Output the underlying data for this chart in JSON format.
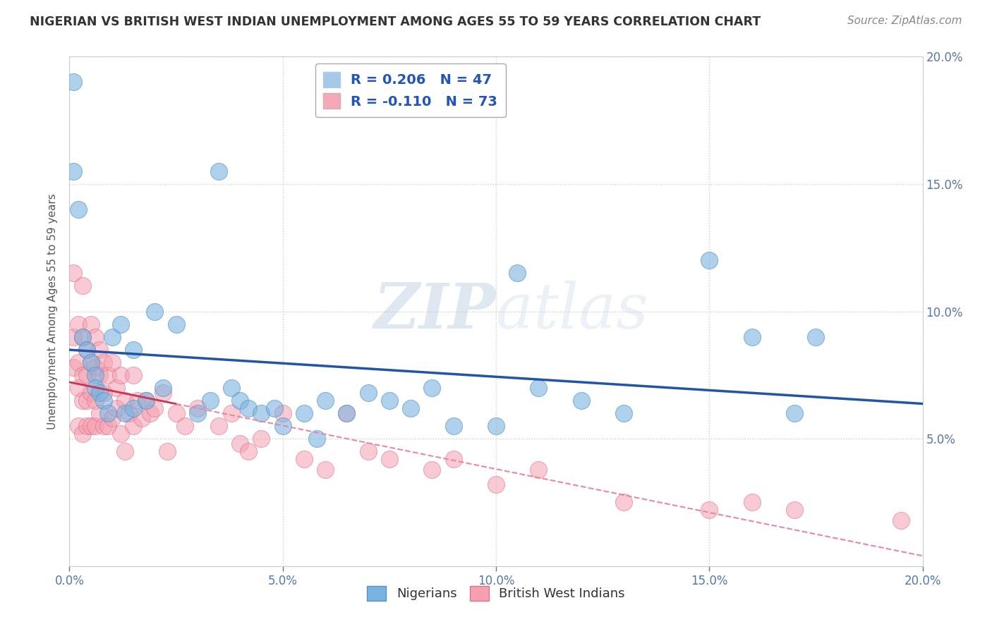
{
  "title": "NIGERIAN VS BRITISH WEST INDIAN UNEMPLOYMENT AMONG AGES 55 TO 59 YEARS CORRELATION CHART",
  "source": "Source: ZipAtlas.com",
  "ylabel": "Unemployment Among Ages 55 to 59 years",
  "legend1_label": "R = 0.206   N = 47",
  "legend2_label": "R = -0.110   N = 73",
  "legend_color1": "#a8c8e8",
  "legend_color2": "#f4a8b8",
  "nigerian_color": "#7ab3e0",
  "nigerian_edge": "#5590c8",
  "bwi_color": "#f4a0b0",
  "bwi_edge": "#e07090",
  "nigerian_line_color": "#2255aa",
  "bwi_line_solid_color": "#cc3355",
  "bwi_line_dash_color": "#e888a0",
  "watermark_color": "#c8d8e8",
  "background_color": "#ffffff",
  "xlim": [
    0.0,
    0.2
  ],
  "ylim": [
    0.0,
    0.2
  ],
  "nigerian_x": [
    0.001,
    0.001,
    0.002,
    0.003,
    0.004,
    0.005,
    0.006,
    0.006,
    0.007,
    0.008,
    0.009,
    0.01,
    0.012,
    0.013,
    0.015,
    0.015,
    0.018,
    0.02,
    0.022,
    0.025,
    0.03,
    0.033,
    0.035,
    0.038,
    0.04,
    0.042,
    0.045,
    0.048,
    0.05,
    0.055,
    0.058,
    0.06,
    0.065,
    0.07,
    0.075,
    0.08,
    0.085,
    0.09,
    0.1,
    0.105,
    0.11,
    0.12,
    0.13,
    0.15,
    0.16,
    0.17,
    0.175
  ],
  "nigerian_y": [
    0.19,
    0.155,
    0.14,
    0.09,
    0.085,
    0.08,
    0.075,
    0.07,
    0.068,
    0.065,
    0.06,
    0.09,
    0.095,
    0.06,
    0.085,
    0.062,
    0.065,
    0.1,
    0.07,
    0.095,
    0.06,
    0.065,
    0.155,
    0.07,
    0.065,
    0.062,
    0.06,
    0.062,
    0.055,
    0.06,
    0.05,
    0.065,
    0.06,
    0.068,
    0.065,
    0.062,
    0.07,
    0.055,
    0.055,
    0.115,
    0.07,
    0.065,
    0.06,
    0.12,
    0.09,
    0.06,
    0.09
  ],
  "bwi_x": [
    0.001,
    0.001,
    0.001,
    0.002,
    0.002,
    0.002,
    0.002,
    0.003,
    0.003,
    0.003,
    0.003,
    0.003,
    0.004,
    0.004,
    0.004,
    0.004,
    0.005,
    0.005,
    0.005,
    0.005,
    0.006,
    0.006,
    0.006,
    0.006,
    0.007,
    0.007,
    0.007,
    0.008,
    0.008,
    0.008,
    0.009,
    0.009,
    0.01,
    0.01,
    0.011,
    0.011,
    0.012,
    0.012,
    0.013,
    0.013,
    0.014,
    0.015,
    0.015,
    0.016,
    0.017,
    0.018,
    0.019,
    0.02,
    0.022,
    0.023,
    0.025,
    0.027,
    0.03,
    0.035,
    0.038,
    0.04,
    0.042,
    0.045,
    0.05,
    0.055,
    0.06,
    0.065,
    0.07,
    0.075,
    0.085,
    0.09,
    0.1,
    0.11,
    0.13,
    0.15,
    0.16,
    0.17,
    0.195
  ],
  "bwi_y": [
    0.115,
    0.09,
    0.078,
    0.095,
    0.08,
    0.07,
    0.055,
    0.11,
    0.09,
    0.075,
    0.065,
    0.052,
    0.085,
    0.075,
    0.065,
    0.055,
    0.095,
    0.08,
    0.068,
    0.055,
    0.09,
    0.078,
    0.065,
    0.055,
    0.085,
    0.075,
    0.06,
    0.08,
    0.068,
    0.055,
    0.075,
    0.055,
    0.08,
    0.058,
    0.07,
    0.062,
    0.075,
    0.052,
    0.065,
    0.045,
    0.06,
    0.075,
    0.055,
    0.065,
    0.058,
    0.065,
    0.06,
    0.062,
    0.068,
    0.045,
    0.06,
    0.055,
    0.062,
    0.055,
    0.06,
    0.048,
    0.045,
    0.05,
    0.06,
    0.042,
    0.038,
    0.06,
    0.045,
    0.042,
    0.038,
    0.042,
    0.032,
    0.038,
    0.025,
    0.022,
    0.025,
    0.022,
    0.018
  ]
}
